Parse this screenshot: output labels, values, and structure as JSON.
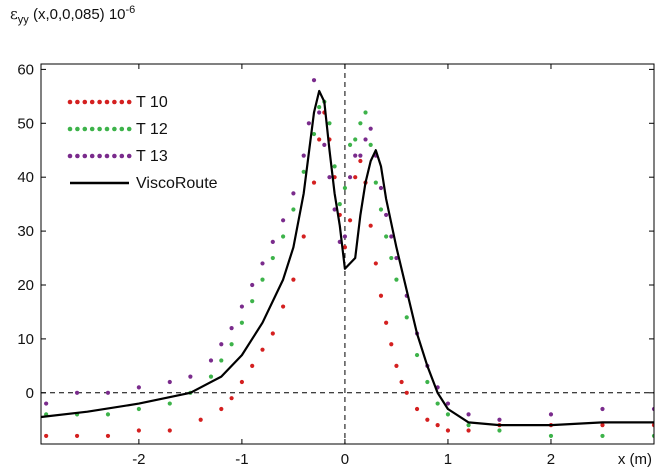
{
  "chart_data": {
    "type": "scatter",
    "ylabel": {
      "symbol": "ε",
      "subscript": "yy",
      "args": " (x,0,0,085) 10",
      "exponent": "-6"
    },
    "xlabel": "x (m)",
    "xlim": [
      -2.95,
      3.0
    ],
    "ylim": [
      -9.5,
      61
    ],
    "x_ticks": [
      -2,
      -1,
      0,
      1,
      2
    ],
    "x_tick_labels": [
      "-2",
      "-1",
      "0",
      "1",
      "2"
    ],
    "y_ticks": [
      0,
      10,
      20,
      30,
      40,
      50,
      60
    ],
    "y_tick_labels": [
      "0",
      "10",
      "20",
      "30",
      "40",
      "50",
      "60"
    ],
    "grid": false,
    "reference_lines": {
      "x": 0,
      "y": 0,
      "style": "dashed"
    },
    "legend_position": "top-left",
    "series": [
      {
        "name": "T 10",
        "color": "#d42020",
        "style": "dotted",
        "x": [
          -2.9,
          -2.6,
          -2.3,
          -2.0,
          -1.7,
          -1.4,
          -1.2,
          -1.1,
          -1.0,
          -0.9,
          -0.8,
          -0.7,
          -0.6,
          -0.5,
          -0.4,
          -0.3,
          -0.25,
          -0.2,
          -0.15,
          -0.1,
          -0.05,
          0.0,
          0.05,
          0.1,
          0.15,
          0.2,
          0.25,
          0.3,
          0.35,
          0.4,
          0.45,
          0.5,
          0.55,
          0.6,
          0.7,
          0.8,
          0.9,
          1.0,
          1.2,
          1.5,
          2.0,
          2.5,
          3.0
        ],
        "y": [
          -8,
          -8,
          -8,
          -7,
          -7,
          -5,
          -3,
          -1,
          2,
          5,
          8,
          11,
          16,
          21,
          29,
          39,
          47,
          52,
          47,
          40,
          33,
          27,
          32,
          40,
          43,
          39,
          31,
          24,
          18,
          13,
          9,
          5,
          2,
          0,
          -3,
          -5,
          -6,
          -7,
          -7,
          -6,
          -6,
          -6,
          -6
        ]
      },
      {
        "name": "T 12",
        "color": "#3db34a",
        "style": "dotted",
        "x": [
          -2.9,
          -2.6,
          -2.3,
          -2.0,
          -1.7,
          -1.5,
          -1.3,
          -1.2,
          -1.1,
          -1.0,
          -0.9,
          -0.8,
          -0.7,
          -0.6,
          -0.5,
          -0.4,
          -0.3,
          -0.25,
          -0.2,
          -0.15,
          -0.1,
          -0.05,
          0.0,
          0.05,
          0.1,
          0.15,
          0.2,
          0.25,
          0.3,
          0.35,
          0.4,
          0.45,
          0.5,
          0.6,
          0.7,
          0.8,
          0.9,
          1.0,
          1.2,
          1.5,
          2.0,
          2.5,
          3.0
        ],
        "y": [
          -4,
          -4,
          -4,
          -3,
          -2,
          0,
          3,
          6,
          9,
          13,
          17,
          21,
          25,
          29,
          34,
          41,
          48,
          53,
          54,
          50,
          42,
          35,
          38,
          46,
          47,
          50,
          52,
          46,
          39,
          34,
          29,
          25,
          21,
          14,
          7,
          2,
          -2,
          -4,
          -6,
          -7,
          -8,
          -8,
          -8
        ]
      },
      {
        "name": "T 13",
        "color": "#7a2b8c",
        "style": "dotted",
        "x": [
          -2.9,
          -2.6,
          -2.3,
          -2.0,
          -1.7,
          -1.5,
          -1.3,
          -1.2,
          -1.1,
          -1.0,
          -0.9,
          -0.8,
          -0.7,
          -0.6,
          -0.5,
          -0.4,
          -0.35,
          -0.3,
          -0.25,
          -0.2,
          -0.15,
          -0.1,
          -0.05,
          0.0,
          0.05,
          0.1,
          0.15,
          0.2,
          0.25,
          0.3,
          0.35,
          0.4,
          0.45,
          0.5,
          0.6,
          0.7,
          0.8,
          0.9,
          1.0,
          1.2,
          1.5,
          2.0,
          2.5,
          3.0
        ],
        "y": [
          -2,
          0,
          0,
          1,
          2,
          3,
          6,
          9,
          12,
          16,
          20,
          24,
          28,
          32,
          37,
          44,
          50,
          58,
          52,
          46,
          40,
          34,
          28,
          29,
          40,
          44,
          44,
          47,
          49,
          44,
          38,
          33,
          29,
          25,
          18,
          11,
          5,
          1,
          -2,
          -4,
          -5,
          -4,
          -3,
          -3
        ]
      },
      {
        "name": "ViscoRoute",
        "color": "#000000",
        "style": "solid",
        "x": [
          -2.95,
          -2.5,
          -2.0,
          -1.5,
          -1.2,
          -1.0,
          -0.8,
          -0.6,
          -0.5,
          -0.4,
          -0.3,
          -0.25,
          -0.2,
          -0.15,
          -0.1,
          -0.05,
          0.0,
          0.1,
          0.15,
          0.2,
          0.25,
          0.3,
          0.35,
          0.4,
          0.5,
          0.6,
          0.7,
          0.8,
          0.9,
          1.0,
          1.2,
          1.5,
          2.0,
          2.5,
          3.0
        ],
        "y": [
          -4.5,
          -3.5,
          -2,
          0,
          3,
          7,
          13,
          21,
          27,
          37,
          52,
          56,
          54,
          45,
          37,
          31,
          23,
          25,
          33,
          39,
          43,
          45,
          42,
          36,
          27,
          19,
          11,
          5,
          0,
          -3,
          -5.5,
          -6,
          -6,
          -5.5,
          -5.5
        ]
      }
    ]
  }
}
